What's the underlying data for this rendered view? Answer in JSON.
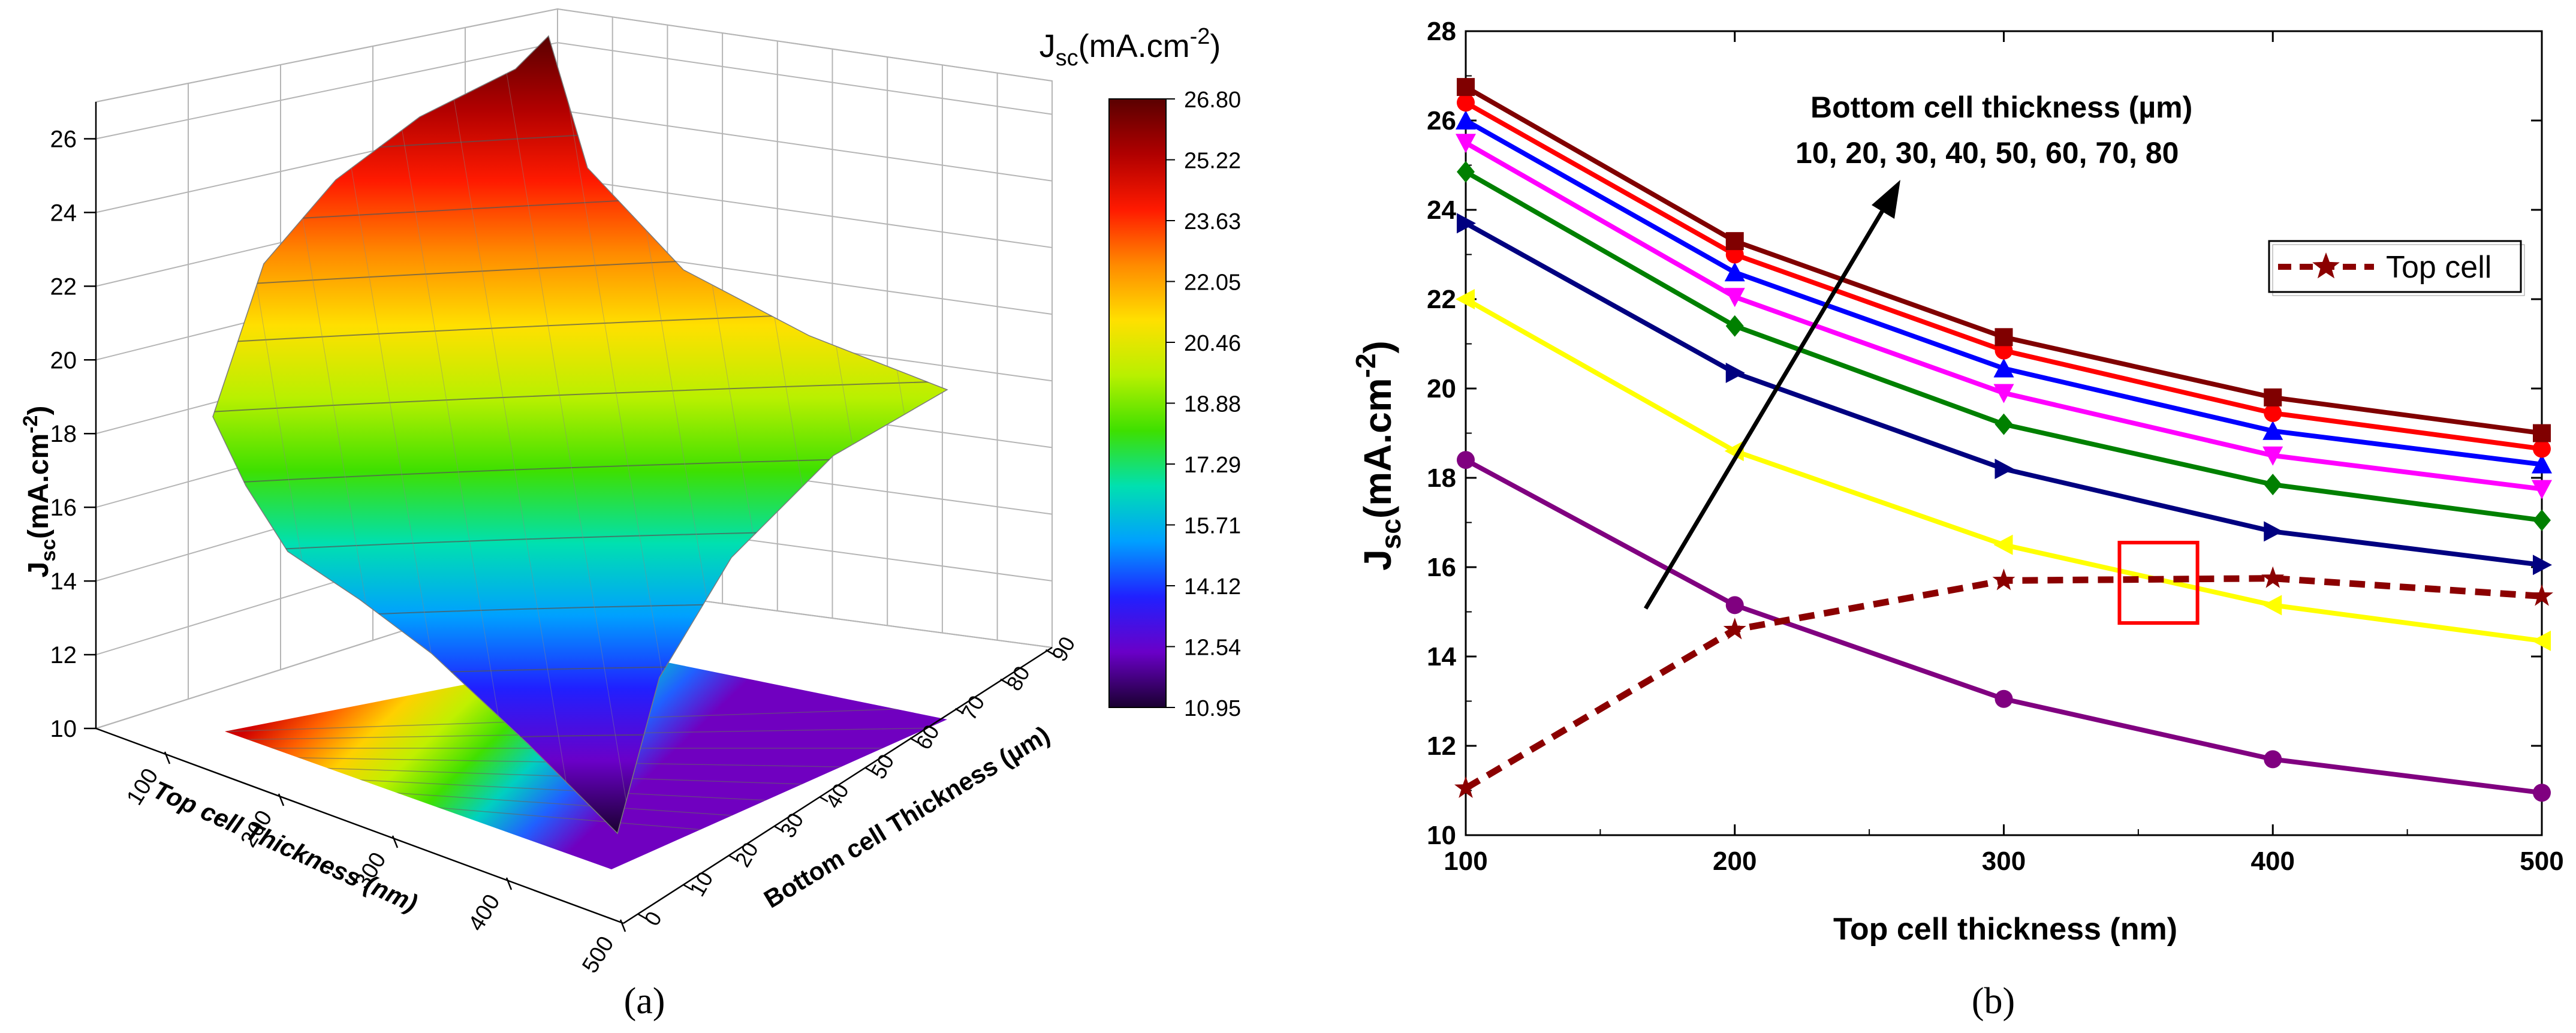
{
  "panel_a_label": "(a)",
  "panel_b_label": "(b)",
  "chart_data": [
    {
      "type": "surface3d",
      "panel": "(a)",
      "xlabel": "Top cell Thickness (nm)",
      "ylabel": "Bottom cell Thickness (µm)",
      "zlabel_main": "J",
      "zlabel_sub": "sc",
      "zlabel_unit": "(mA.cm",
      "zlabel_sup": "-2",
      "x_ticks": [
        "100",
        "200",
        "300",
        "400",
        "500"
      ],
      "y_ticks": [
        "0",
        "10",
        "20",
        "30",
        "40",
        "50",
        "60",
        "70",
        "80",
        "90"
      ],
      "z_ticks": [
        "10",
        "12",
        "14",
        "16",
        "18",
        "20",
        "22",
        "24",
        "26"
      ],
      "zlim": [
        10,
        27
      ],
      "colorbar_title_main": "J",
      "colorbar_title_sub": "sc",
      "colorbar_title_unit": "(mA.cm",
      "colorbar_title_sup": "-2",
      "colorbar_ticks": [
        "26.80",
        "25.22",
        "23.63",
        "22.05",
        "20.46",
        "18.88",
        "17.29",
        "15.71",
        "14.12",
        "12.54",
        "10.95"
      ],
      "colorbar_range": [
        10.95,
        26.8
      ],
      "corners": {
        "top_100_bottom_0": 18.8,
        "top_100_bottom_80": 26.8,
        "top_500_bottom_0": 10.95,
        "top_500_bottom_80": 19.0
      },
      "colors": {
        "stops": [
          "#5a0000",
          "#b00000",
          "#ff1a00",
          "#ff8a00",
          "#ffe000",
          "#b8f000",
          "#3ee000",
          "#00e0b0",
          "#00a0ff",
          "#2020ff",
          "#6a00c8",
          "#1a0030"
        ]
      }
    },
    {
      "type": "line",
      "panel": "(b)",
      "title": "",
      "xlabel": "Top cell thickness (nm)",
      "ylabel_main": "J",
      "ylabel_sub": "sc",
      "ylabel_unit": "(mA.cm",
      "ylabel_sup": "-2",
      "ylabel_close": ")",
      "x": [
        100,
        200,
        300,
        400,
        500
      ],
      "xlim": [
        100,
        500
      ],
      "ylim": [
        10,
        28
      ],
      "x_ticks": [
        "100",
        "200",
        "300",
        "400",
        "500"
      ],
      "y_ticks": [
        "10",
        "12",
        "14",
        "16",
        "18",
        "20",
        "22",
        "24",
        "26",
        "28"
      ],
      "annotation_line1": "Bottom cell thickness (µm)",
      "annotation_line2": "10, 20, 30, 40, 50, 60, 70, 80",
      "legend_label": "Top cell",
      "series": [
        {
          "name": "10",
          "color": "#800080",
          "marker": "circle",
          "values": [
            18.4,
            15.15,
            13.05,
            11.7,
            10.95
          ]
        },
        {
          "name": "20",
          "color": "#ffff00",
          "marker": "triangle-left",
          "values": [
            22.0,
            18.6,
            16.5,
            15.15,
            14.35
          ]
        },
        {
          "name": "30",
          "color": "#000080",
          "marker": "triangle-right",
          "values": [
            23.7,
            20.35,
            18.2,
            16.8,
            16.05
          ]
        },
        {
          "name": "40",
          "color": "#008000",
          "marker": "diamond",
          "values": [
            24.85,
            21.4,
            19.2,
            17.85,
            17.05
          ]
        },
        {
          "name": "50",
          "color": "#ff00ff",
          "marker": "triangle-down",
          "values": [
            25.5,
            22.05,
            19.9,
            18.5,
            17.75
          ]
        },
        {
          "name": "60",
          "color": "#0000ff",
          "marker": "triangle-up",
          "values": [
            26.0,
            22.6,
            20.45,
            19.05,
            18.3
          ]
        },
        {
          "name": "70",
          "color": "#ff0000",
          "marker": "circle",
          "values": [
            26.4,
            23.0,
            20.85,
            19.45,
            18.65
          ]
        },
        {
          "name": "80",
          "color": "#800000",
          "marker": "square",
          "values": [
            26.75,
            23.3,
            21.15,
            19.8,
            19.0
          ]
        },
        {
          "name": "Top cell",
          "color": "#8b0000",
          "marker": "star",
          "dashed": true,
          "values": [
            11.05,
            14.6,
            15.7,
            15.75,
            15.35
          ]
        }
      ],
      "highlight_box": {
        "x_range": [
          343,
          372
        ],
        "y_range": [
          14.75,
          16.55
        ],
        "color": "#ff0000"
      }
    }
  ]
}
